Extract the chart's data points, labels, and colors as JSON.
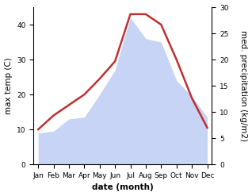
{
  "months": [
    "Jan",
    "Feb",
    "Mar",
    "Apr",
    "May",
    "Jun",
    "Jul",
    "Aug",
    "Sep",
    "Oct",
    "Nov",
    "Dec"
  ],
  "max_temp": [
    10.0,
    14.0,
    17.0,
    20.0,
    24.5,
    29.5,
    43.0,
    43.0,
    40.0,
    30.0,
    19.0,
    10.5
  ],
  "precipitation": [
    9.0,
    9.5,
    13.0,
    13.5,
    20.0,
    27.0,
    42.0,
    36.0,
    35.0,
    24.0,
    19.5,
    13.5
  ],
  "temp_ylim": [
    0,
    45
  ],
  "precip_ylim": [
    0,
    30
  ],
  "temp_yticks": [
    0,
    10,
    20,
    30,
    40
  ],
  "precip_yticks": [
    0,
    5,
    10,
    15,
    20,
    25,
    30
  ],
  "xlabel": "date (month)",
  "ylabel_left": "max temp (C)",
  "ylabel_right": "med. precipitation (kg/m2)",
  "fill_color": "#c8d4f5",
  "fill_alpha": 1.0,
  "line_color": "#c03030",
  "line_width": 1.8,
  "bg_color": "#ffffff",
  "label_fontsize": 7.5,
  "tick_fontsize": 6.5
}
